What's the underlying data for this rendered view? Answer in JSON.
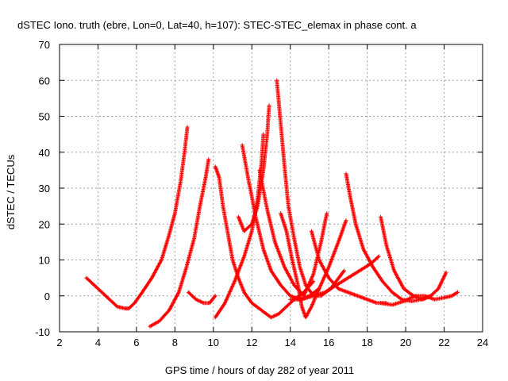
{
  "chart_data": {
    "type": "scatter",
    "title": "dSTEC Iono. truth (ebre, Lon=0, Lat=40, h=107): STEC-STEC_elemax in phase cont. a",
    "xlabel": "GPS time / hours of day 282 of year 2011",
    "ylabel": "dSTEC  / TECUs",
    "xlim": [
      2,
      24
    ],
    "ylim": [
      -10,
      70
    ],
    "xticks": [
      2,
      4,
      6,
      8,
      10,
      12,
      14,
      16,
      18,
      20,
      22,
      24
    ],
    "yticks": [
      -10,
      0,
      10,
      20,
      30,
      40,
      50,
      60,
      70
    ],
    "grid": true,
    "marker": "plus",
    "color": "#ff0000",
    "series": [
      {
        "x": [
          3.4,
          4.0,
          4.6,
          5.0,
          5.4,
          5.6,
          5.9,
          6.3,
          6.8,
          7.3,
          7.7,
          8.0,
          8.3,
          8.5,
          8.65
        ],
        "y": [
          5,
          2,
          -1,
          -3,
          -3.5,
          -3.5,
          -2,
          1,
          5,
          10,
          17,
          23,
          32,
          40,
          47
        ]
      },
      {
        "x": [
          6.7,
          7.2,
          7.7,
          8.2,
          8.6,
          9.0,
          9.3,
          9.6,
          9.75
        ],
        "y": [
          -8.5,
          -7,
          -4,
          1,
          8,
          16,
          25,
          33,
          38
        ]
      },
      {
        "x": [
          8.7,
          9.1,
          9.5,
          9.8,
          10.1
        ],
        "y": [
          1,
          -1,
          -2,
          -2,
          0
        ]
      },
      {
        "x": [
          10.1,
          10.3,
          10.5,
          10.8,
          11.0,
          11.3,
          11.6,
          12.0,
          12.5,
          13.0,
          13.4,
          13.8,
          14.2,
          14.7,
          15.2
        ],
        "y": [
          36,
          33,
          25,
          16,
          10,
          5,
          1,
          -2,
          -4,
          -6,
          -5,
          -3,
          -1,
          1,
          4
        ]
      },
      {
        "x": [
          10.1,
          10.6,
          11.1,
          11.6,
          12.0,
          12.3,
          12.5,
          12.6
        ],
        "y": [
          -6,
          -2,
          4,
          11,
          18,
          27,
          37,
          45
        ]
      },
      {
        "x": [
          11.5,
          11.8,
          12.2,
          12.6,
          13.0,
          13.5,
          14.0,
          14.5,
          15.0,
          15.5
        ],
        "y": [
          42,
          33,
          22,
          13,
          7,
          3,
          0,
          -1,
          0,
          2
        ]
      },
      {
        "x": [
          11.3,
          11.6,
          12.0,
          12.3,
          12.6,
          12.8,
          12.9
        ],
        "y": [
          22,
          18,
          20,
          25,
          35,
          45,
          53
        ]
      },
      {
        "x": [
          12.4,
          12.8,
          13.2,
          13.7,
          14.2,
          14.7,
          15.2,
          15.6,
          15.9
        ],
        "y": [
          35,
          24,
          15,
          8,
          3,
          0,
          6,
          15,
          23
        ]
      },
      {
        "x": [
          13.3,
          13.5,
          13.7,
          13.9,
          14.2,
          14.5,
          14.8,
          15.2,
          15.6,
          16.1,
          16.8
        ],
        "y": [
          60,
          48,
          36,
          25,
          16,
          8,
          3,
          0,
          0,
          2,
          7
        ]
      },
      {
        "x": [
          13.5,
          13.8,
          14.1,
          14.4,
          14.6,
          14.8,
          15.1,
          15.5,
          16.0,
          16.5,
          16.9
        ],
        "y": [
          23,
          18,
          10,
          3,
          -3,
          -6,
          -3,
          2,
          8,
          15,
          21
        ]
      },
      {
        "x": [
          14.0,
          14.6,
          15.2,
          15.8,
          16.4,
          17.0,
          17.6,
          18.2,
          18.6
        ],
        "y": [
          -1,
          -1,
          0,
          1,
          3,
          5,
          7,
          9,
          11
        ]
      },
      {
        "x": [
          15.1,
          15.5,
          16.0,
          16.5,
          17.0,
          17.5,
          18.0,
          18.5,
          19.0
        ],
        "y": [
          18,
          10,
          5,
          2,
          1,
          0,
          -1,
          -2,
          -2
        ]
      },
      {
        "x": [
          16.9,
          17.1,
          17.4,
          17.8,
          18.3,
          18.8,
          19.3,
          19.8,
          20.3,
          20.8,
          21.3
        ],
        "y": [
          34,
          28,
          20,
          13,
          8,
          4,
          1,
          -1,
          -1.5,
          -1,
          0
        ]
      },
      {
        "x": [
          18.7,
          19.0,
          19.4,
          19.9,
          20.4,
          20.9,
          21.3,
          21.7,
          22.1
        ],
        "y": [
          22,
          14,
          7,
          2,
          0,
          -1,
          0,
          2,
          6.5
        ]
      },
      {
        "x": [
          18.7,
          19.3,
          19.9,
          20.5,
          21.0,
          21.5,
          22.0,
          22.4,
          22.7
        ],
        "y": [
          -2,
          -2.5,
          -1.5,
          0,
          0,
          -1,
          -0.5,
          0,
          1
        ]
      }
    ]
  }
}
